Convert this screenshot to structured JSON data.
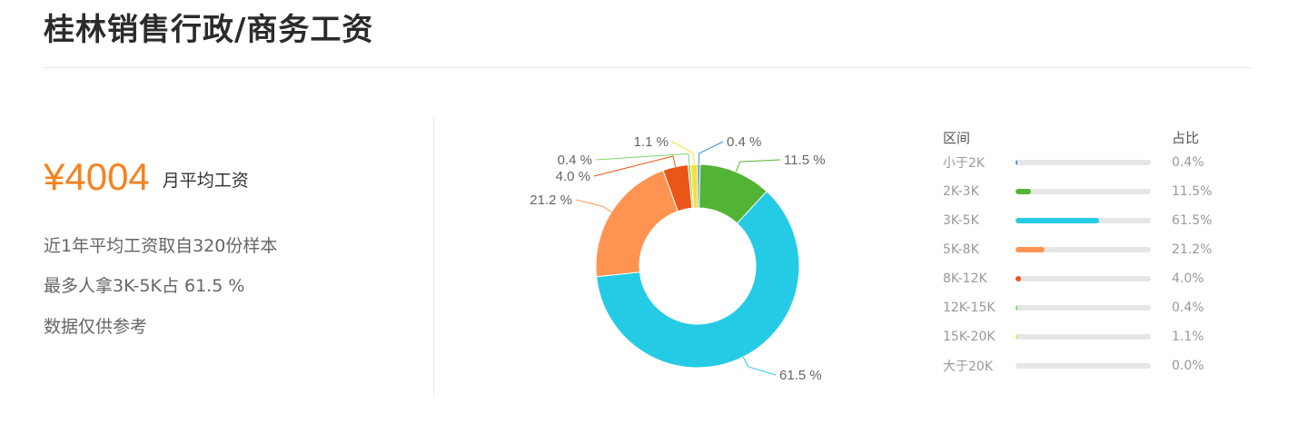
{
  "page": {
    "title": "桂林销售行政/商务工资"
  },
  "summary": {
    "salary_value": "¥4004",
    "salary_label": "月平均工资",
    "sample_line": "近1年平均工资取自320份样本",
    "most_line": "最多人拿3K-5K占 61.5 %",
    "reference_line": "数据仅供参考"
  },
  "legend": {
    "range_header": "区间",
    "share_header": "占比"
  },
  "chart_data": {
    "type": "pie",
    "donut": true,
    "categories": [
      "小于2K",
      "2K-3K",
      "3K-5K",
      "5K-8K",
      "8K-12K",
      "12K-15K",
      "15K-20K",
      "大于20K"
    ],
    "values": [
      0.4,
      11.5,
      61.5,
      21.2,
      4.0,
      0.4,
      1.1,
      0.0
    ],
    "value_labels": [
      "0.4 %",
      "11.5 %",
      "61.5 %",
      "21.2 %",
      "4.0 %",
      "0.4 %",
      "1.1 %",
      ""
    ],
    "share_labels": [
      "0.4%",
      "11.5%",
      "61.5%",
      "21.2%",
      "4.0%",
      "0.4%",
      "1.1%",
      "0.0%"
    ],
    "colors": [
      "#3d8fd1",
      "#52b435",
      "#25cbe5",
      "#ff9452",
      "#ea5618",
      "#7dd66b",
      "#f5e13a",
      "#c8c8c8"
    ]
  }
}
